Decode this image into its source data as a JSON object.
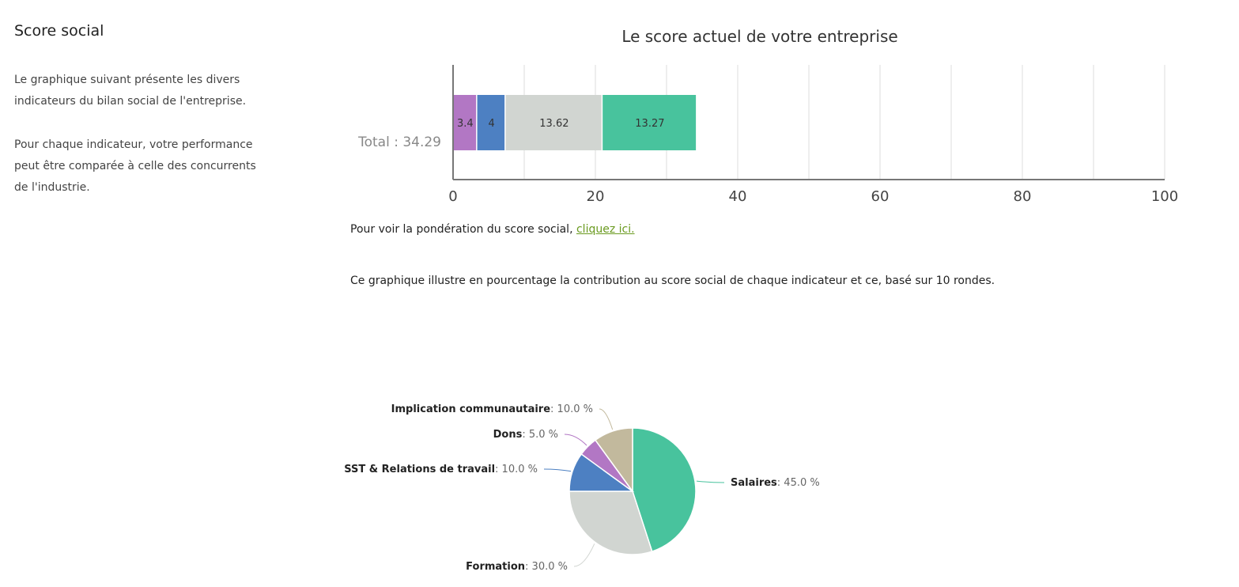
{
  "sidebar": {
    "title": "Score social",
    "paragraph1": "Le graphique suivant présente les divers indicateurs du bilan social de l'entreprise.",
    "paragraph2": "Pour chaque indicateur, votre performance peut être comparée à celle des concurrents de l'industrie."
  },
  "main": {
    "weighting_text": "Pour voir la pondération du score social, ",
    "weighting_link": "cliquez ici.",
    "pie_intro": "Ce graphique illustre en pourcentage la contribution au score social de chaque indicateur et ce, basé sur 10 rondes."
  },
  "chart_data": [
    {
      "type": "bar",
      "orientation": "horizontal-stacked",
      "title": "Le score actuel de votre entreprise",
      "categories": [
        "Total : 34.29"
      ],
      "series": [
        {
          "name": "Dons",
          "values": [
            3.4
          ],
          "label": "3.4",
          "color": "#b277c4"
        },
        {
          "name": "SST & Relations de travail",
          "values": [
            4
          ],
          "label": "4",
          "color": "#4d80c2"
        },
        {
          "name": "Formation",
          "values": [
            13.62
          ],
          "label": "13.62",
          "color": "#d1d5d1"
        },
        {
          "name": "Salaires",
          "values": [
            13.27
          ],
          "label": "13.27",
          "color": "#48c39d"
        }
      ],
      "xlim": [
        0,
        100
      ],
      "xticks": [
        "0",
        "20",
        "40",
        "60",
        "80",
        "100"
      ],
      "grid": true
    },
    {
      "type": "pie",
      "slices": [
        {
          "name": "Salaires",
          "value": 45.0,
          "pct": ": 45.0 %",
          "color": "#48c39d"
        },
        {
          "name": "Formation",
          "value": 30.0,
          "pct": ": 30.0 %",
          "color": "#d1d5d1"
        },
        {
          "name": "SST & Relations de travail",
          "value": 10.0,
          "pct": ": 10.0 %",
          "color": "#4d80c2"
        },
        {
          "name": "Dons",
          "value": 5.0,
          "pct": ": 5.0 %",
          "color": "#b277c4"
        },
        {
          "name": "Implication communautaire",
          "value": 10.0,
          "pct": ": 10.0 %",
          "color": "#c2b99d"
        }
      ]
    }
  ]
}
